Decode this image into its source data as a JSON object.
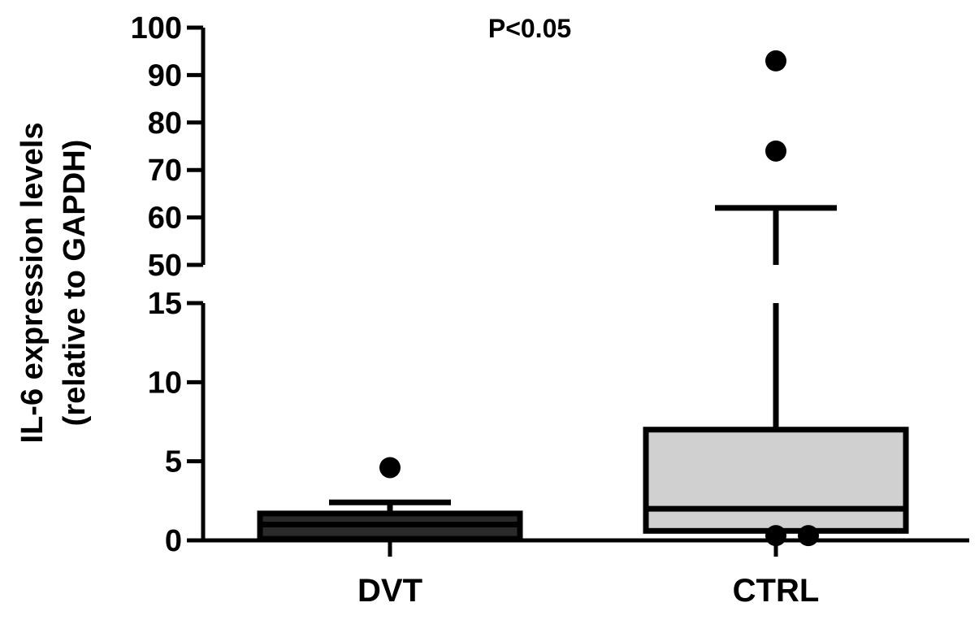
{
  "chart_data": {
    "type": "box",
    "annotation": "P<0.05",
    "ylabel_line1": "IL-6 expression levels",
    "ylabel_line2": "(relative to GAPDH)",
    "xlabel": "",
    "y_axis_break": {
      "lower_range": [
        0,
        15
      ],
      "upper_range": [
        50,
        100
      ]
    },
    "lower_ticks": [
      "0",
      "5",
      "10",
      "15"
    ],
    "upper_ticks": [
      "50",
      "60",
      "70",
      "80",
      "90",
      "100"
    ],
    "categories": [
      "DVT",
      "CTRL"
    ],
    "boxes": [
      {
        "name": "DVT",
        "fill": "#2a2a2a",
        "min": 0.0,
        "q1": 0.1,
        "median": 1.0,
        "q3": 1.7,
        "max": 2.4,
        "outliers": [
          4.6
        ]
      },
      {
        "name": "CTRL",
        "fill": "#d0d0d0",
        "min": 0.0,
        "q1": 0.6,
        "median": 2.0,
        "q3": 7.0,
        "max": 62,
        "outliers": [
          0.3,
          0.3,
          74,
          93
        ]
      }
    ],
    "colors": {
      "axis": "#000000",
      "outlier": "#000000"
    }
  }
}
